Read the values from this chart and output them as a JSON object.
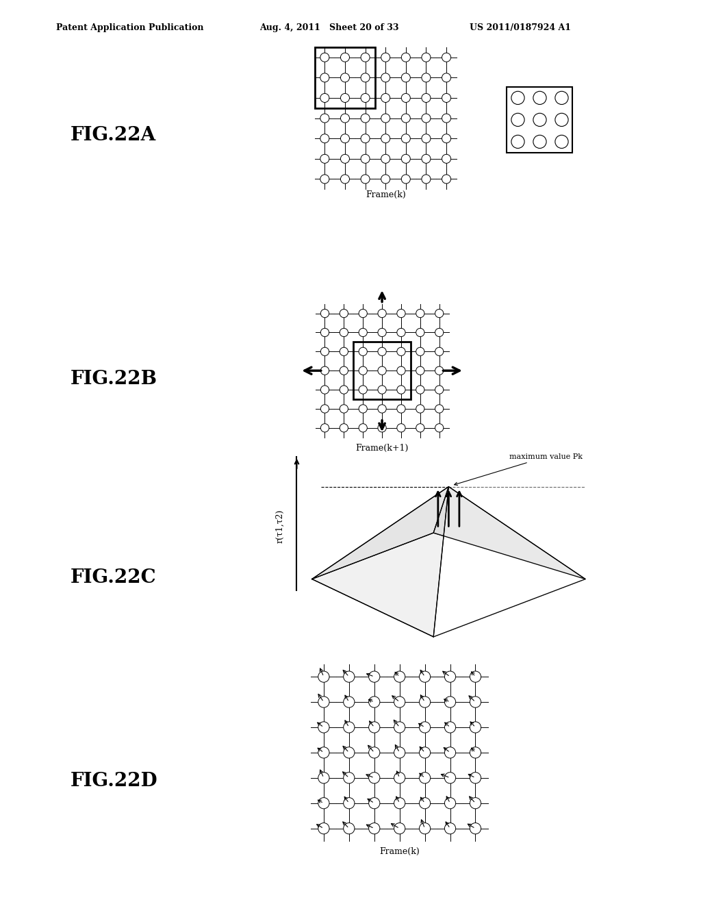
{
  "header_left": "Patent Application Publication",
  "header_mid": "Aug. 4, 2011   Sheet 20 of 33",
  "header_right": "US 2011/0187924 A1",
  "fig_labels": [
    "FIG.22A",
    "FIG.22B",
    "FIG.22C",
    "FIG.22D"
  ],
  "frame_k_label": "Frame(k)",
  "frame_k1_label": "Frame(k+1)",
  "frame_k_label2": "Frame(k)",
  "max_value_label": "maximum value Pk",
  "ylabel_22c": "r(τ1,τ2)",
  "background": "#ffffff",
  "text_color": "#000000"
}
